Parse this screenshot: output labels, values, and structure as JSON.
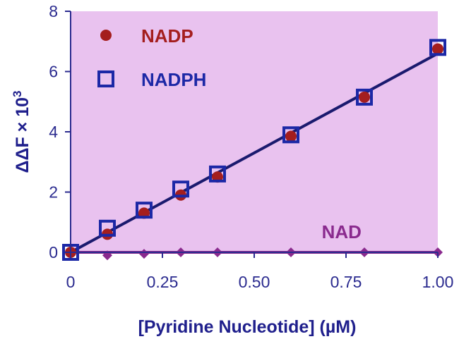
{
  "chart_data": {
    "type": "scatter",
    "xlabel": "[Pyridine Nucleotide] (µM)",
    "ylabel": "ΔΔF × 10",
    "ylabel_sup": "3",
    "xlim": [
      0,
      1.0
    ],
    "ylim": [
      0,
      8
    ],
    "x_ticks": [
      "0",
      "0.25",
      "0.50",
      "0.75",
      "1.00"
    ],
    "x_tick_values": [
      0,
      0.25,
      0.5,
      0.75,
      1.0
    ],
    "y_ticks": [
      "0",
      "2",
      "4",
      "6",
      "8"
    ],
    "y_tick_values": [
      0,
      2,
      4,
      6,
      8
    ],
    "grid": false,
    "background_color": "#e9c2ef",
    "legend_position": "top-left",
    "series": [
      {
        "name": "NADP",
        "marker": "circle",
        "color": "#a41e1e",
        "x": [
          0,
          0.1,
          0.2,
          0.3,
          0.4,
          0.6,
          0.8,
          1.0
        ],
        "y": [
          0.0,
          0.6,
          1.3,
          1.9,
          2.5,
          3.85,
          5.15,
          6.75
        ]
      },
      {
        "name": "NADPH",
        "marker": "open-square",
        "color": "#1c28a6",
        "x": [
          0,
          0.1,
          0.2,
          0.3,
          0.4,
          0.6,
          0.8,
          1.0
        ],
        "y": [
          0.0,
          0.8,
          1.4,
          2.1,
          2.6,
          3.9,
          5.15,
          6.8
        ]
      },
      {
        "name": "NAD",
        "marker": "diamond",
        "color": "#8a2a8e",
        "x": [
          0,
          0.1,
          0.2,
          0.3,
          0.4,
          0.6,
          0.8,
          1.0
        ],
        "y": [
          0.0,
          -0.1,
          -0.05,
          0.0,
          0.0,
          0.0,
          0.0,
          0.0
        ]
      }
    ],
    "fit_lines": [
      {
        "series": "NADP/NADPH",
        "color": "#1a1a6e",
        "x": [
          0,
          1.0
        ],
        "y": [
          0.0,
          6.6
        ]
      },
      {
        "series": "NAD",
        "color": "#8a2a8e",
        "x": [
          0,
          1.0
        ],
        "y": [
          0.0,
          0.0
        ]
      }
    ],
    "annotations": [
      {
        "text": "NAD",
        "x": 0.78,
        "y": 0.7,
        "color": "#8a2a8e"
      }
    ]
  }
}
